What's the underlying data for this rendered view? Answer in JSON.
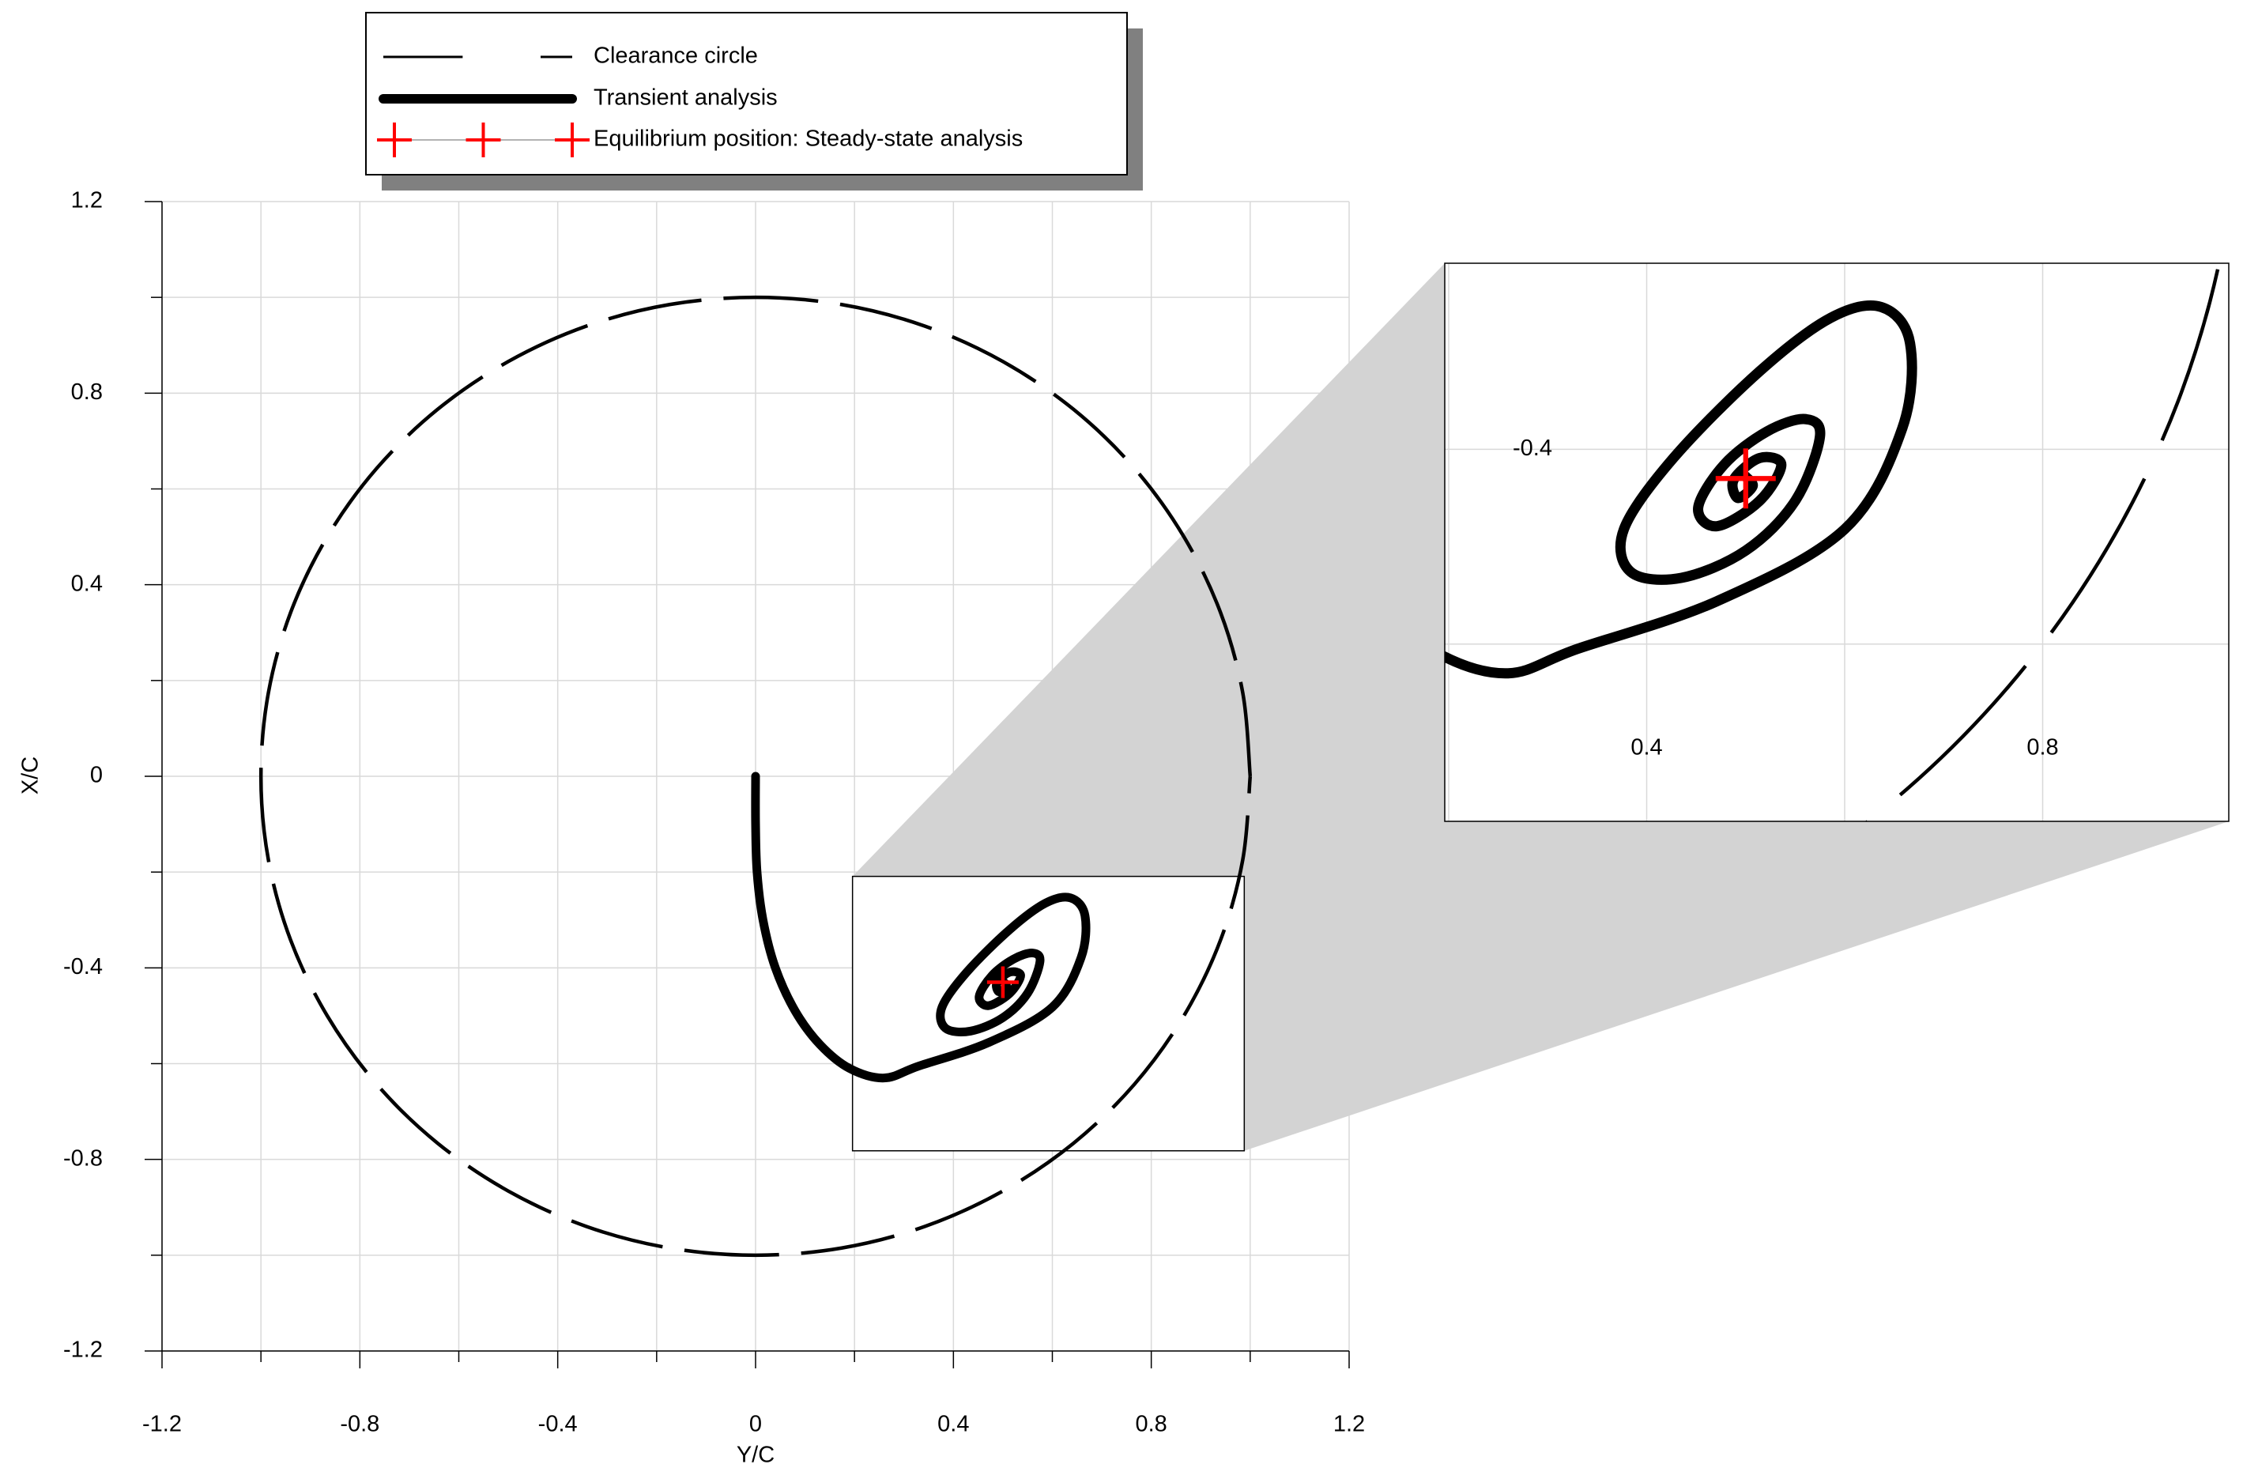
{
  "chart_data": {
    "type": "line",
    "xlabel": "Y/C",
    "ylabel": "X/C",
    "xlim": [
      -1.2,
      1.2
    ],
    "ylim": [
      -1.2,
      1.2
    ],
    "xticks": [
      -1.2,
      -0.8,
      -0.4,
      0,
      0.4,
      0.8,
      1.2
    ],
    "yticks": [
      -1.2,
      -0.8,
      -0.4,
      0,
      0.4,
      0.8,
      1.2
    ],
    "xminorticks": [
      -1,
      -0.6,
      -0.2,
      0.2,
      0.6,
      1
    ],
    "yminorticks": [
      -1,
      -0.6,
      -0.2,
      0.2,
      0.6,
      1
    ],
    "grid": true,
    "series": [
      {
        "name": "Clearance circle",
        "color": "#000000",
        "style": "dashed",
        "x": [
          1,
          0.985,
          0.94,
          0.866,
          0.766,
          0.643,
          0.5,
          0.342,
          0.174,
          0,
          -0.174,
          -0.342,
          -0.5,
          -0.643,
          -0.766,
          -0.866,
          -0.94,
          -0.985,
          -1,
          -0.985,
          -0.94,
          -0.866,
          -0.766,
          -0.643,
          -0.5,
          -0.342,
          -0.174,
          0,
          0.174,
          0.342,
          0.5,
          0.643,
          0.766,
          0.866,
          0.94,
          0.985,
          1
        ],
        "y": [
          0,
          0.174,
          0.342,
          0.5,
          0.643,
          0.766,
          0.866,
          0.94,
          0.985,
          1,
          0.985,
          0.94,
          0.866,
          0.766,
          0.643,
          0.5,
          0.342,
          0.174,
          0,
          -0.174,
          -0.342,
          -0.5,
          -0.643,
          -0.766,
          -0.866,
          -0.94,
          -0.985,
          -1,
          -0.985,
          -0.94,
          -0.866,
          -0.766,
          -0.643,
          -0.5,
          -0.342,
          -0.174,
          0
        ]
      },
      {
        "name": "Transient analysis",
        "color": "#000000",
        "style": "thick",
        "x": [
          0,
          0,
          0.003,
          0.015,
          0.04,
          0.08,
          0.13,
          0.19,
          0.26,
          0.33,
          0.471,
          0.6,
          0.658,
          0.666,
          0.637,
          0.586,
          0.514,
          0.427,
          0.377,
          0.384,
          0.435,
          0.5,
          0.55,
          0.575,
          0.56,
          0.521,
          0.478,
          0.452,
          0.471,
          0.514,
          0.536,
          0.514,
          0.488,
          0.492,
          0.507,
          0.5
        ],
        "y": [
          0,
          -0.1,
          -0.2,
          -0.3,
          -0.4,
          -0.49,
          -0.56,
          -0.61,
          -0.63,
          -0.605,
          -0.556,
          -0.482,
          -0.379,
          -0.291,
          -0.254,
          -0.265,
          -0.32,
          -0.409,
          -0.482,
          -0.526,
          -0.532,
          -0.504,
          -0.453,
          -0.387,
          -0.369,
          -0.382,
          -0.416,
          -0.46,
          -0.479,
          -0.453,
          -0.416,
          -0.409,
          -0.431,
          -0.45,
          -0.438,
          -0.428
        ]
      },
      {
        "name": "Equilibrium position: Steady-state analysis",
        "color": "#ff0000",
        "style": "marker",
        "marker": "plus",
        "x": [
          0.5
        ],
        "y": [
          -0.43
        ]
      }
    ],
    "inset": {
      "xlim": [
        0.196,
        0.988
      ],
      "ylim": [
        -0.782,
        -0.209
      ],
      "xticks": [
        0.4,
        0.8
      ],
      "yticks": [
        -0.4
      ]
    }
  }
}
